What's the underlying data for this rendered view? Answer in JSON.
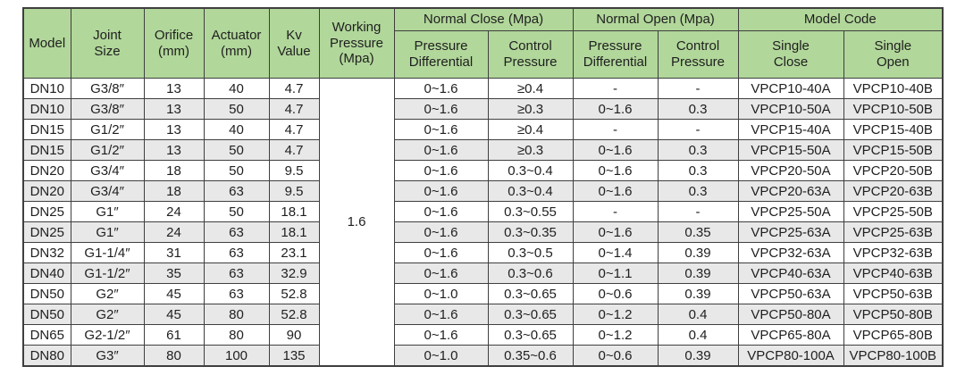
{
  "colors": {
    "header_green": "#b1d79a",
    "stripe_gray": "#e8e8e8",
    "border": "#3f3f3f",
    "text": "#1f1f1f",
    "page_bg": "#ffffff"
  },
  "table": {
    "header": {
      "model": "Model",
      "joint_size": "Joint\nSize",
      "orifice": "Orifice\n(mm)",
      "actuator": "Actuator\n(mm)",
      "kv_value": "Kv\nValue",
      "working_pressure": "Working\nPressure\n(Mpa)",
      "normal_close": "Normal Close (Mpa)",
      "normal_open": "Normal Open (Mpa)",
      "model_code": "Model Code",
      "nc_pressure_differential": "Pressure\nDifferential",
      "nc_control_pressure": "Control\nPressure",
      "no_pressure_differential": "Pressure\nDifferential",
      "no_control_pressure": "Control\nPressure",
      "single_close": "Single\nClose",
      "single_open": "Single\nOpen"
    },
    "working_pressure_value": "1.6",
    "rows": [
      {
        "model": "DN10",
        "joint": "G3/8″",
        "orifice": "13",
        "actuator": "40",
        "kv": "4.7",
        "nc_pd": "0~1.6",
        "nc_cp": "≥0.4",
        "no_pd": "-",
        "no_cp": "-",
        "single_close": "VPCP10-40A",
        "single_open": "VPCP10-40B"
      },
      {
        "model": "DN10",
        "joint": "G3/8″",
        "orifice": "13",
        "actuator": "50",
        "kv": "4.7",
        "nc_pd": "0~1.6",
        "nc_cp": "≥0.3",
        "no_pd": "0~1.6",
        "no_cp": "0.3",
        "single_close": "VPCP10-50A",
        "single_open": "VPCP10-50B"
      },
      {
        "model": "DN15",
        "joint": "G1/2″",
        "orifice": "13",
        "actuator": "40",
        "kv": "4.7",
        "nc_pd": "0~1.6",
        "nc_cp": "≥0.4",
        "no_pd": "-",
        "no_cp": "-",
        "single_close": "VPCP15-40A",
        "single_open": "VPCP15-40B"
      },
      {
        "model": "DN15",
        "joint": "G1/2″",
        "orifice": "13",
        "actuator": "50",
        "kv": "4.7",
        "nc_pd": "0~1.6",
        "nc_cp": "≥0.3",
        "no_pd": "0~1.6",
        "no_cp": "0.3",
        "single_close": "VPCP15-50A",
        "single_open": "VPCP15-50B"
      },
      {
        "model": "DN20",
        "joint": "G3/4″",
        "orifice": "18",
        "actuator": "50",
        "kv": "9.5",
        "nc_pd": "0~1.6",
        "nc_cp": "0.3~0.4",
        "no_pd": "0~1.6",
        "no_cp": "0.3",
        "single_close": "VPCP20-50A",
        "single_open": "VPCP20-50B"
      },
      {
        "model": "DN20",
        "joint": "G3/4″",
        "orifice": "18",
        "actuator": "63",
        "kv": "9.5",
        "nc_pd": "0~1.6",
        "nc_cp": "0.3~0.4",
        "no_pd": "0~1.6",
        "no_cp": "0.3",
        "single_close": "VPCP20-63A",
        "single_open": "VPCP20-63B"
      },
      {
        "model": "DN25",
        "joint": "G1″",
        "orifice": "24",
        "actuator": "50",
        "kv": "18.1",
        "nc_pd": "0~1.6",
        "nc_cp": "0.3~0.55",
        "no_pd": "-",
        "no_cp": "-",
        "single_close": "VPCP25-50A",
        "single_open": "VPCP25-50B"
      },
      {
        "model": "DN25",
        "joint": "G1″",
        "orifice": "24",
        "actuator": "63",
        "kv": "18.1",
        "nc_pd": "0~1.6",
        "nc_cp": "0.3~0.35",
        "no_pd": "0~1.6",
        "no_cp": "0.35",
        "single_close": "VPCP25-63A",
        "single_open": "VPCP25-63B"
      },
      {
        "model": "DN32",
        "joint": "G1-1/4″",
        "orifice": "31",
        "actuator": "63",
        "kv": "23.1",
        "nc_pd": "0~1.6",
        "nc_cp": "0.3~0.5",
        "no_pd": "0~1.4",
        "no_cp": "0.39",
        "single_close": "VPCP32-63A",
        "single_open": "VPCP32-63B"
      },
      {
        "model": "DN40",
        "joint": "G1-1/2″",
        "orifice": "35",
        "actuator": "63",
        "kv": "32.9",
        "nc_pd": "0~1.6",
        "nc_cp": "0.3~0.6",
        "no_pd": "0~1.1",
        "no_cp": "0.39",
        "single_close": "VPCP40-63A",
        "single_open": "VPCP40-63B"
      },
      {
        "model": "DN50",
        "joint": "G2″",
        "orifice": "45",
        "actuator": "63",
        "kv": "52.8",
        "nc_pd": "0~1.0",
        "nc_cp": "0.3~0.65",
        "no_pd": "0~0.6",
        "no_cp": "0.39",
        "single_close": "VPCP50-63A",
        "single_open": "VPCP50-63B"
      },
      {
        "model": "DN50",
        "joint": "G2″",
        "orifice": "45",
        "actuator": "80",
        "kv": "52.8",
        "nc_pd": "0~1.6",
        "nc_cp": "0.3~0.65",
        "no_pd": "0~1.2",
        "no_cp": "0.4",
        "single_close": "VPCP50-80A",
        "single_open": "VPCP50-80B"
      },
      {
        "model": "DN65",
        "joint": "G2-1/2″",
        "orifice": "61",
        "actuator": "80",
        "kv": "90",
        "nc_pd": "0~1.6",
        "nc_cp": "0.3~0.65",
        "no_pd": "0~1.2",
        "no_cp": "0.4",
        "single_close": "VPCP65-80A",
        "single_open": "VPCP65-80B"
      },
      {
        "model": "DN80",
        "joint": "G3″",
        "orifice": "80",
        "actuator": "100",
        "kv": "135",
        "nc_pd": "0~1.0",
        "nc_cp": "0.35~0.6",
        "no_pd": "0~0.6",
        "no_cp": "0.39",
        "single_close": "VPCP80-100A",
        "single_open": "VPCP80-100B"
      }
    ]
  }
}
